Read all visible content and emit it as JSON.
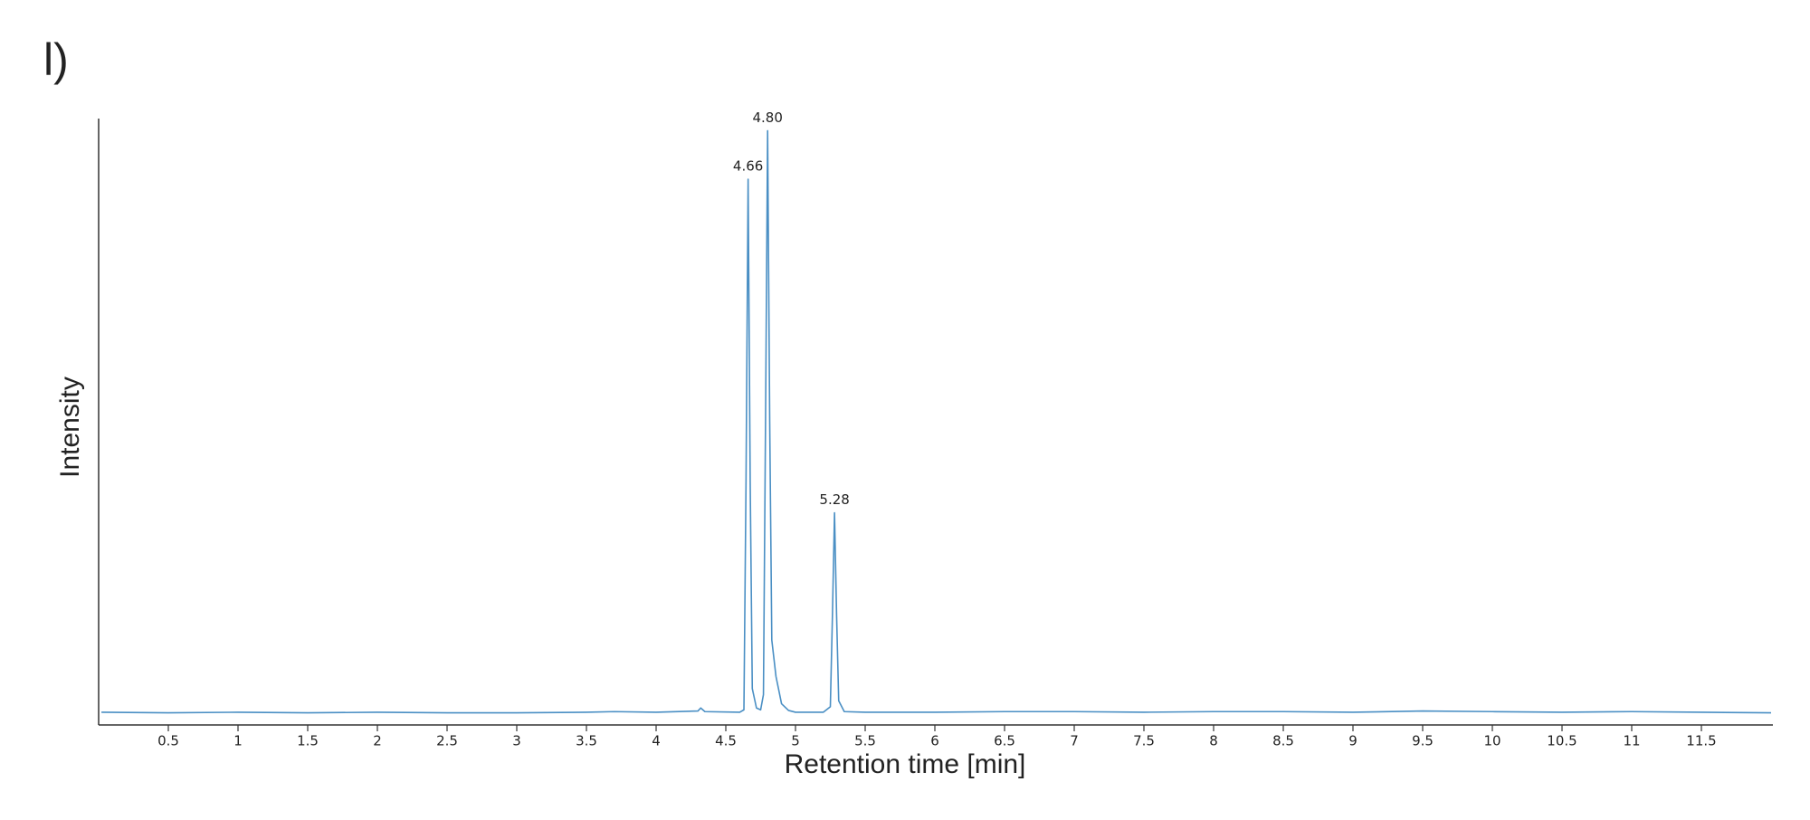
{
  "panel_label": "l)",
  "chart_data": {
    "type": "line",
    "xlabel": "Retention time [min]",
    "ylabel": "Intensity",
    "xlim": [
      0,
      12
    ],
    "ylim": [
      0,
      100
    ],
    "xticks": [
      0.5,
      1,
      1.5,
      2,
      2.5,
      3,
      3.5,
      4,
      4.5,
      5,
      5.5,
      6,
      6.5,
      7,
      7.5,
      8,
      8.5,
      9,
      9.5,
      10,
      10.5,
      11,
      11.5
    ],
    "x": [
      0.02,
      0.5,
      1,
      1.5,
      2,
      2.5,
      3,
      3.5,
      3.7,
      4,
      4.3,
      4.32,
      4.35,
      4.6,
      4.63,
      4.645,
      4.66,
      4.675,
      4.69,
      4.72,
      4.75,
      4.77,
      4.785,
      4.8,
      4.815,
      4.83,
      4.86,
      4.9,
      4.95,
      5.0,
      5.2,
      5.25,
      5.265,
      5.28,
      5.295,
      5.31,
      5.35,
      5.5,
      6,
      6.5,
      7,
      7.5,
      8,
      8.5,
      9,
      9.5,
      10,
      10.5,
      11,
      11.5,
      12
    ],
    "series": [
      {
        "color": "#4a8fc4",
        "values": [
          2.1,
          2.0,
          2.1,
          2.0,
          2.1,
          2.0,
          2.0,
          2.1,
          2.2,
          2.1,
          2.3,
          2.8,
          2.2,
          2.1,
          2.5,
          40,
          90,
          40,
          6,
          2.8,
          2.5,
          5,
          50,
          98,
          50,
          14,
          8,
          3.5,
          2.4,
          2.1,
          2.1,
          3,
          18,
          35,
          18,
          4,
          2.2,
          2.1,
          2.1,
          2.2,
          2.2,
          2.1,
          2.2,
          2.2,
          2.1,
          2.3,
          2.2,
          2.1,
          2.2,
          2.1,
          2.0
        ]
      }
    ],
    "annotations": [
      {
        "x": 4.66,
        "y": 90,
        "text": "4.66"
      },
      {
        "x": 4.8,
        "y": 98,
        "text": "4.80"
      },
      {
        "x": 5.28,
        "y": 35,
        "text": "5.28"
      }
    ]
  }
}
